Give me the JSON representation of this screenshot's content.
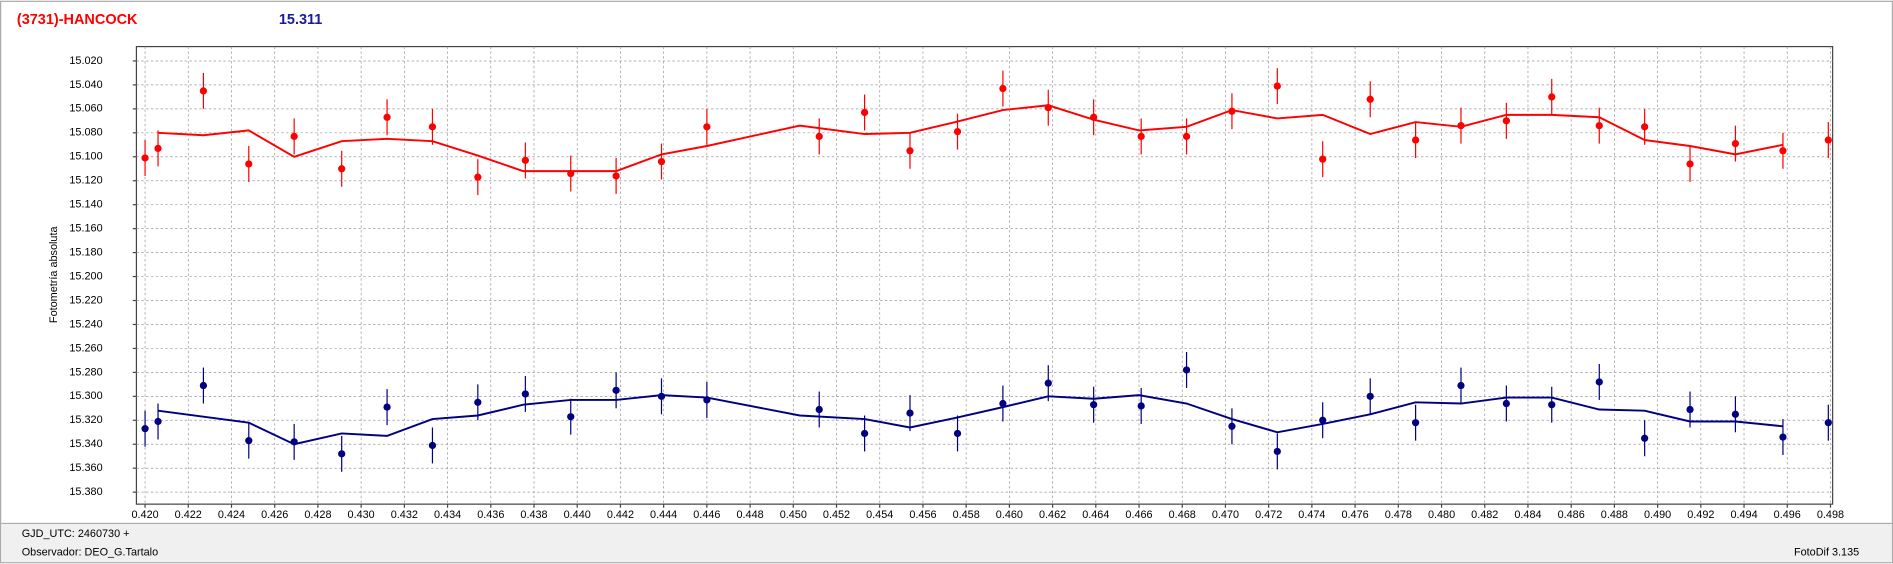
{
  "chart_data": {
    "type": "scatter",
    "title": "(3731)-HANCOCK",
    "subtitle": "15.311",
    "y_label": "Fotometría absoluta",
    "xlim": [
      0.4196,
      0.4981
    ],
    "ylim": [
      15.008,
      15.39
    ],
    "y_inverted": true,
    "grid": true,
    "xticks": [
      {
        "value": 0.42,
        "label": "0.420"
      },
      0.422,
      0.424,
      0.426,
      0.428,
      {
        "value": 0.43,
        "label": "0.430"
      },
      0.432,
      0.434,
      0.436,
      0.438,
      {
        "value": 0.44,
        "label": "0.440"
      },
      0.442,
      0.444,
      0.446,
      0.448,
      {
        "value": 0.45,
        "label": "0.450"
      },
      0.452,
      0.454,
      0.456,
      0.458,
      {
        "value": 0.46,
        "label": "0.460"
      },
      0.462,
      0.464,
      0.466,
      0.468,
      {
        "value": 0.47,
        "label": "0.470"
      },
      0.472,
      0.474,
      0.476,
      0.478,
      {
        "value": 0.48,
        "label": "0.480"
      },
      0.482,
      0.484,
      0.486,
      0.488,
      {
        "value": 0.49,
        "label": "0.490"
      },
      0.492,
      0.494,
      0.496,
      0.498
    ],
    "yticks": [
      {
        "value": 15.02,
        "label": "15.020"
      },
      {
        "value": 15.04,
        "label": "15.040"
      },
      {
        "value": 15.06,
        "label": "15.060"
      },
      {
        "value": 15.08,
        "label": "15.080"
      },
      {
        "value": 15.1,
        "label": "15.100"
      },
      {
        "value": 15.12,
        "label": "15.120"
      },
      {
        "value": 15.14,
        "label": "15.140"
      },
      {
        "value": 15.16,
        "label": "15.160"
      },
      {
        "value": 15.18,
        "label": "15.180"
      },
      {
        "value": 15.2,
        "label": "15.200"
      },
      {
        "value": 15.22,
        "label": "15.220"
      },
      {
        "value": 15.24,
        "label": "15.240"
      },
      {
        "value": 15.26,
        "label": "15.260"
      },
      {
        "value": 15.28,
        "label": "15.280"
      },
      {
        "value": 15.3,
        "label": "15.300"
      },
      {
        "value": 15.32,
        "label": "15.320"
      },
      {
        "value": 15.34,
        "label": "15.340"
      },
      {
        "value": 15.36,
        "label": "15.360"
      },
      {
        "value": 15.38,
        "label": "15.380"
      }
    ],
    "series": [
      {
        "color": "#ff0000",
        "error": 0.015,
        "x": [
          0.42,
          0.4206,
          0.4227,
          0.4248,
          0.4269,
          0.4291,
          0.4312,
          0.4333,
          0.4354,
          0.4376,
          0.4397,
          0.4418,
          0.4439,
          0.446,
          0.4512,
          0.4533,
          0.4554,
          0.4576,
          0.4597,
          0.4618,
          0.4639,
          0.4661,
          0.4682,
          0.4703,
          0.4724,
          0.4745,
          0.4767,
          0.4788,
          0.4809,
          0.483,
          0.4851,
          0.4873,
          0.4894,
          0.4915,
          0.4936,
          0.4958,
          0.4979
        ],
        "values": [
          15.101,
          15.093,
          15.045,
          15.106,
          15.083,
          15.11,
          15.067,
          15.075,
          15.117,
          15.103,
          15.114,
          15.116,
          15.104,
          15.075,
          15.083,
          15.063,
          15.095,
          15.079,
          15.043,
          15.059,
          15.067,
          15.083,
          15.083,
          15.062,
          15.041,
          15.102,
          15.052,
          15.086,
          15.074,
          15.07,
          15.05,
          15.074,
          15.075,
          15.106,
          15.089,
          15.095,
          15.086
        ]
      },
      {
        "color": "#000080",
        "error": 0.015,
        "x": [
          0.42,
          0.4206,
          0.4227,
          0.4248,
          0.4269,
          0.4291,
          0.4312,
          0.4333,
          0.4354,
          0.4376,
          0.4397,
          0.4418,
          0.4439,
          0.446,
          0.4512,
          0.4533,
          0.4554,
          0.4576,
          0.4597,
          0.4618,
          0.4639,
          0.4661,
          0.4682,
          0.4703,
          0.4724,
          0.4745,
          0.4767,
          0.4788,
          0.4809,
          0.483,
          0.4851,
          0.4873,
          0.4894,
          0.4915,
          0.4936,
          0.4958,
          0.4979
        ],
        "values": [
          15.327,
          15.321,
          15.291,
          15.337,
          15.338,
          15.348,
          15.309,
          15.341,
          15.305,
          15.298,
          15.317,
          15.295,
          15.3,
          15.303,
          15.311,
          15.331,
          15.314,
          15.331,
          15.306,
          15.289,
          15.307,
          15.308,
          15.278,
          15.325,
          15.346,
          15.32,
          15.3,
          15.322,
          15.291,
          15.306,
          15.307,
          15.288,
          15.335,
          15.311,
          15.315,
          15.334,
          15.322
        ]
      },
      {
        "color": "#ff0000",
        "x": [
          0.4206,
          0.4227,
          0.4248,
          0.4269,
          0.4291,
          0.4312,
          0.4333,
          0.4354,
          0.4375,
          0.4397,
          0.4418,
          0.4439,
          0.446,
          0.4503,
          0.4533,
          0.4554,
          0.4575,
          0.4597,
          0.4618,
          0.4639,
          0.466,
          0.4682,
          0.4703,
          0.4724,
          0.4745,
          0.4767,
          0.4788,
          0.4809,
          0.483,
          0.4851,
          0.4873,
          0.4894,
          0.4915,
          0.4936,
          0.4958
        ],
        "values": [
          15.08,
          15.082,
          15.078,
          15.1,
          15.087,
          15.085,
          15.087,
          15.099,
          15.112,
          15.112,
          15.112,
          15.098,
          15.091,
          15.074,
          15.081,
          15.08,
          15.071,
          15.061,
          15.057,
          15.069,
          15.078,
          15.075,
          15.061,
          15.068,
          15.065,
          15.081,
          15.071,
          15.075,
          15.065,
          15.065,
          15.067,
          15.086,
          15.091,
          15.098,
          15.09
        ]
      },
      {
        "color": "#000080",
        "x": [
          0.4206,
          0.4227,
          0.4248,
          0.4269,
          0.4291,
          0.4312,
          0.4333,
          0.4354,
          0.4375,
          0.4397,
          0.4418,
          0.4439,
          0.446,
          0.4503,
          0.4533,
          0.4554,
          0.4575,
          0.4597,
          0.4618,
          0.4639,
          0.466,
          0.4682,
          0.4703,
          0.4724,
          0.4745,
          0.4767,
          0.4788,
          0.4809,
          0.483,
          0.4851,
          0.4873,
          0.4894,
          0.4915,
          0.4936,
          0.4958
        ],
        "values": [
          15.312,
          15.317,
          15.322,
          15.34,
          15.331,
          15.333,
          15.319,
          15.316,
          15.307,
          15.303,
          15.303,
          15.299,
          15.301,
          15.316,
          15.319,
          15.326,
          15.318,
          15.309,
          15.3,
          15.302,
          15.299,
          15.306,
          15.319,
          15.33,
          15.323,
          15.315,
          15.305,
          15.306,
          15.301,
          15.301,
          15.311,
          15.312,
          15.321,
          15.321,
          15.325
        ]
      }
    ]
  },
  "footer": {
    "lines": [
      "GJD_UTC: 2460730 +",
      "Observador: DEO_G.Tartalo"
    ],
    "version": "FotoDif 3.135"
  }
}
